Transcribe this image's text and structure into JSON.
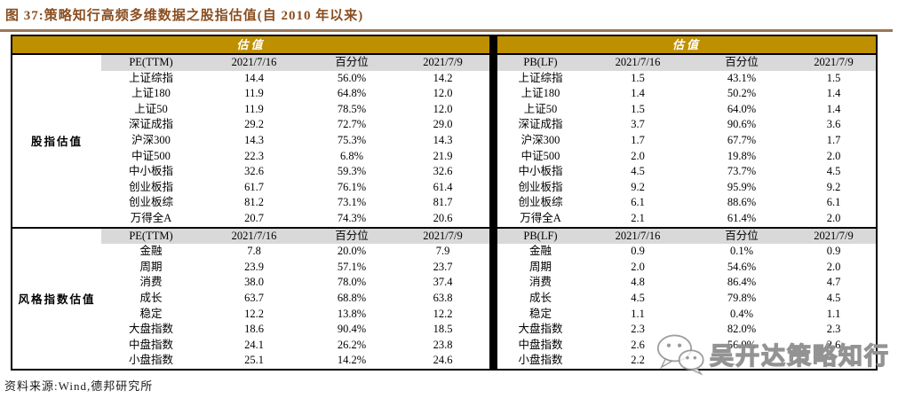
{
  "title": "图 37:策略知行高频多维数据之股指估值(自 2010 年以来)",
  "band_label": "估值",
  "source_note": "资料来源:Wind,德邦研究所",
  "colors": {
    "accent_gold": "#BE9000",
    "title_brown": "#8A4E1F",
    "rule_brown": "#9B7555",
    "header_gray": "#D9D9D9",
    "border_black": "#000000"
  },
  "tables": {
    "left": {
      "sections": [
        {
          "group_label": "股指估值",
          "header": [
            "PE(TTM)",
            "2021/7/16",
            "百分位",
            "2021/7/9"
          ],
          "rows": [
            [
              "上证综指",
              "14.4",
              "56.0%",
              "14.2"
            ],
            [
              "上证180",
              "11.9",
              "64.8%",
              "12.0"
            ],
            [
              "上证50",
              "11.9",
              "78.5%",
              "12.0"
            ],
            [
              "深证成指",
              "29.2",
              "72.7%",
              "29.0"
            ],
            [
              "沪深300",
              "14.3",
              "75.3%",
              "14.3"
            ],
            [
              "中证500",
              "22.3",
              "6.8%",
              "21.9"
            ],
            [
              "中小板指",
              "32.6",
              "59.3%",
              "32.6"
            ],
            [
              "创业板指",
              "61.7",
              "76.1%",
              "61.4"
            ],
            [
              "创业板综",
              "81.2",
              "73.1%",
              "81.7"
            ],
            [
              "万得全A",
              "20.7",
              "74.3%",
              "20.6"
            ]
          ]
        },
        {
          "group_label": "风格指数估值",
          "header": [
            "PE(TTM)",
            "2021/7/16",
            "百分位",
            "2021/7/9"
          ],
          "rows": [
            [
              "金融",
              "7.8",
              "20.0%",
              "7.9"
            ],
            [
              "周期",
              "23.9",
              "57.1%",
              "23.7"
            ],
            [
              "消费",
              "38.0",
              "78.0%",
              "37.4"
            ],
            [
              "成长",
              "63.7",
              "68.8%",
              "63.8"
            ],
            [
              "稳定",
              "12.2",
              "13.8%",
              "12.2"
            ],
            [
              "大盘指数",
              "18.6",
              "90.4%",
              "18.5"
            ],
            [
              "中盘指数",
              "24.1",
              "26.2%",
              "23.8"
            ],
            [
              "小盘指数",
              "25.1",
              "14.2%",
              "24.6"
            ]
          ]
        }
      ]
    },
    "right": {
      "sections": [
        {
          "header": [
            "PB(LF)",
            "2021/7/16",
            "百分位",
            "2021/7/9"
          ],
          "rows": [
            [
              "上证综指",
              "1.5",
              "43.1%",
              "1.5"
            ],
            [
              "上证180",
              "1.4",
              "50.2%",
              "1.4"
            ],
            [
              "上证50",
              "1.5",
              "64.0%",
              "1.4"
            ],
            [
              "深证成指",
              "3.7",
              "90.6%",
              "3.6"
            ],
            [
              "沪深300",
              "1.7",
              "67.7%",
              "1.7"
            ],
            [
              "中证500",
              "2.0",
              "19.8%",
              "2.0"
            ],
            [
              "中小板指",
              "4.5",
              "73.7%",
              "4.5"
            ],
            [
              "创业板指",
              "9.2",
              "95.9%",
              "9.2"
            ],
            [
              "创业板综",
              "6.1",
              "88.6%",
              "6.1"
            ],
            [
              "万得全A",
              "2.1",
              "61.4%",
              "2.0"
            ]
          ]
        },
        {
          "header": [
            "PB(LF)",
            "2021/7/16",
            "百分位",
            "2021/7/9"
          ],
          "rows": [
            [
              "金融",
              "0.9",
              "0.1%",
              "0.9"
            ],
            [
              "周期",
              "2.0",
              "54.6%",
              "2.0"
            ],
            [
              "消费",
              "4.8",
              "86.4%",
              "4.7"
            ],
            [
              "成长",
              "4.5",
              "79.8%",
              "4.5"
            ],
            [
              "稳定",
              "1.1",
              "0.4%",
              "1.1"
            ],
            [
              "大盘指数",
              "2.3",
              "82.0%",
              "2.3"
            ],
            [
              "中盘指数",
              "2.6",
              "56.9%",
              "2.6"
            ],
            [
              "小盘指数",
              "2.2",
              "",
              ""
            ]
          ]
        }
      ]
    }
  },
  "watermark": {
    "icon": "wechat-icon",
    "text": "吴开达策略知行"
  }
}
